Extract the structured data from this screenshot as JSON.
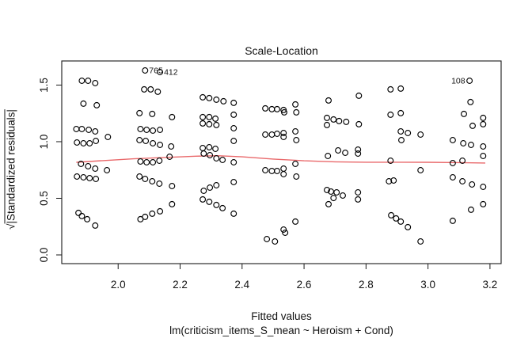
{
  "title": "Scale-Location",
  "x_axis": {
    "label": "Fitted values",
    "ticks": [
      "2.0",
      "2.2",
      "2.4",
      "2.6",
      "2.8",
      "3.0",
      "3.2"
    ],
    "tick_values": [
      2.0,
      2.2,
      2.4,
      2.6,
      2.8,
      3.0,
      3.2
    ]
  },
  "y_axis": {
    "label_radical": "√",
    "label_text": "|Standardized residuals|",
    "ticks": [
      "0.0",
      "0.5",
      "1.0",
      "1.5"
    ],
    "tick_values": [
      0.0,
      0.5,
      1.0,
      1.5
    ]
  },
  "model_caption": "lm(criticism_items_S_mean ~ Heroism + Cond)",
  "colors": {
    "points": "#000000",
    "smooth_line": "#e9696b",
    "axis": "#1a1a1a",
    "text": "#111111"
  },
  "chart_data": {
    "type": "scatter",
    "title": "Scale-Location",
    "xlabel": "Fitted values",
    "ylabel": "sqrt(|Standardized residuals|)",
    "xlim": [
      1.818,
      3.236
    ],
    "ylim": [
      -0.077,
      1.713
    ],
    "grid": false,
    "legend": "none",
    "points": [
      [
        1.883,
        1.538
      ],
      [
        1.903,
        1.538
      ],
      [
        1.926,
        1.517
      ],
      [
        1.888,
        1.336
      ],
      [
        1.931,
        1.322
      ],
      [
        1.865,
        1.112
      ],
      [
        1.883,
        1.112
      ],
      [
        1.905,
        1.105
      ],
      [
        1.926,
        1.091
      ],
      [
        1.967,
        1.042
      ],
      [
        1.867,
        0.993
      ],
      [
        1.888,
        0.986
      ],
      [
        1.908,
        0.986
      ],
      [
        1.928,
        1.007
      ],
      [
        1.88,
        0.804
      ],
      [
        1.903,
        0.783
      ],
      [
        1.926,
        0.762
      ],
      [
        1.964,
        0.748
      ],
      [
        1.867,
        0.692
      ],
      [
        1.888,
        0.685
      ],
      [
        1.908,
        0.678
      ],
      [
        1.928,
        0.671
      ],
      [
        1.872,
        0.371
      ],
      [
        1.883,
        0.343
      ],
      [
        1.9,
        0.315
      ],
      [
        1.926,
        0.259
      ],
      [
        2.087,
        1.629
      ],
      [
        2.135,
        1.615
      ],
      [
        2.084,
        1.462
      ],
      [
        2.105,
        1.462
      ],
      [
        2.128,
        1.441
      ],
      [
        2.069,
        1.252
      ],
      [
        2.11,
        1.245
      ],
      [
        2.174,
        1.217
      ],
      [
        2.072,
        1.112
      ],
      [
        2.092,
        1.105
      ],
      [
        2.112,
        1.098
      ],
      [
        2.135,
        1.105
      ],
      [
        2.069,
        1.014
      ],
      [
        2.089,
        1.007
      ],
      [
        2.112,
        0.986
      ],
      [
        2.135,
        0.972
      ],
      [
        2.171,
        0.958
      ],
      [
        2.072,
        0.825
      ],
      [
        2.092,
        0.818
      ],
      [
        2.112,
        0.818
      ],
      [
        2.133,
        0.832
      ],
      [
        2.166,
        0.867
      ],
      [
        2.069,
        0.692
      ],
      [
        2.087,
        0.671
      ],
      [
        2.11,
        0.65
      ],
      [
        2.133,
        0.629
      ],
      [
        2.174,
        0.608
      ],
      [
        2.174,
        0.448
      ],
      [
        2.135,
        0.385
      ],
      [
        2.11,
        0.364
      ],
      [
        2.087,
        0.336
      ],
      [
        2.072,
        0.315
      ],
      [
        2.273,
        1.392
      ],
      [
        2.294,
        1.385
      ],
      [
        2.317,
        1.371
      ],
      [
        2.34,
        1.357
      ],
      [
        2.273,
        1.217
      ],
      [
        2.294,
        1.217
      ],
      [
        2.314,
        1.203
      ],
      [
        2.273,
        1.161
      ],
      [
        2.294,
        1.154
      ],
      [
        2.317,
        1.147
      ],
      [
        2.273,
        0.944
      ],
      [
        2.294,
        0.951
      ],
      [
        2.314,
        0.937
      ],
      [
        2.276,
        0.895
      ],
      [
        2.296,
        0.881
      ],
      [
        2.317,
        0.853
      ],
      [
        2.337,
        0.839
      ],
      [
        2.317,
        0.615
      ],
      [
        2.296,
        0.594
      ],
      [
        2.276,
        0.566
      ],
      [
        2.273,
        0.49
      ],
      [
        2.294,
        0.469
      ],
      [
        2.317,
        0.441
      ],
      [
        2.337,
        0.413
      ],
      [
        2.373,
        1.343
      ],
      [
        2.373,
        1.238
      ],
      [
        2.373,
        1.119
      ],
      [
        2.373,
        1.007
      ],
      [
        2.373,
        0.818
      ],
      [
        2.373,
        0.643
      ],
      [
        2.373,
        0.364
      ],
      [
        2.475,
        1.294
      ],
      [
        2.496,
        1.287
      ],
      [
        2.513,
        1.287
      ],
      [
        2.534,
        1.28
      ],
      [
        2.536,
        1.259
      ],
      [
        2.572,
        1.329
      ],
      [
        2.575,
        1.259
      ],
      [
        2.475,
        1.063
      ],
      [
        2.496,
        1.063
      ],
      [
        2.513,
        1.07
      ],
      [
        2.534,
        1.077
      ],
      [
        2.534,
        1.042
      ],
      [
        2.572,
        1.091
      ],
      [
        2.575,
        1.014
      ],
      [
        2.475,
        0.748
      ],
      [
        2.496,
        0.741
      ],
      [
        2.513,
        0.741
      ],
      [
        2.534,
        0.762
      ],
      [
        2.534,
        0.713
      ],
      [
        2.572,
        0.804
      ],
      [
        2.575,
        0.692
      ],
      [
        2.572,
        0.294
      ],
      [
        2.534,
        0.224
      ],
      [
        2.539,
        0.196
      ],
      [
        2.506,
        0.119
      ],
      [
        2.48,
        0.14
      ],
      [
        2.679,
        1.364
      ],
      [
        2.777,
        1.406
      ],
      [
        2.674,
        1.21
      ],
      [
        2.695,
        1.196
      ],
      [
        2.713,
        1.182
      ],
      [
        2.736,
        1.175
      ],
      [
        2.777,
        1.154
      ],
      [
        2.674,
        1.147
      ],
      [
        2.677,
        0.874
      ],
      [
        2.71,
        0.923
      ],
      [
        2.733,
        0.902
      ],
      [
        2.774,
        0.93
      ],
      [
        2.774,
        0.895
      ],
      [
        2.674,
        0.573
      ],
      [
        2.687,
        0.559
      ],
      [
        2.705,
        0.552
      ],
      [
        2.725,
        0.524
      ],
      [
        2.695,
        0.503
      ],
      [
        2.774,
        0.552
      ],
      [
        2.774,
        0.49
      ],
      [
        2.679,
        0.448
      ],
      [
        2.879,
        1.462
      ],
      [
        2.912,
        1.469
      ],
      [
        2.879,
        1.238
      ],
      [
        2.912,
        1.252
      ],
      [
        2.912,
        1.091
      ],
      [
        2.935,
        1.077
      ],
      [
        2.914,
        1.014
      ],
      [
        2.976,
        1.063
      ],
      [
        2.879,
        0.832
      ],
      [
        2.874,
        0.65
      ],
      [
        2.889,
        0.657
      ],
      [
        2.976,
        0.748
      ],
      [
        2.881,
        0.35
      ],
      [
        2.897,
        0.322
      ],
      [
        2.912,
        0.294
      ],
      [
        2.935,
        0.245
      ],
      [
        2.976,
        0.119
      ],
      [
        3.134,
        1.538
      ],
      [
        3.137,
        1.35
      ],
      [
        3.116,
        1.245
      ],
      [
        3.178,
        1.21
      ],
      [
        3.178,
        1.154
      ],
      [
        3.144,
        1.14
      ],
      [
        3.08,
        1.014
      ],
      [
        3.114,
        0.986
      ],
      [
        3.139,
        0.972
      ],
      [
        3.178,
        0.958
      ],
      [
        3.178,
        0.874
      ],
      [
        3.08,
        0.811
      ],
      [
        3.111,
        0.832
      ],
      [
        3.08,
        0.685
      ],
      [
        3.111,
        0.65
      ],
      [
        3.142,
        0.622
      ],
      [
        3.178,
        0.601
      ],
      [
        3.178,
        0.448
      ],
      [
        3.139,
        0.399
      ],
      [
        3.08,
        0.301
      ]
    ],
    "labeled_points": [
      {
        "label": "765",
        "x": 2.087,
        "y": 1.629,
        "side": "right"
      },
      {
        "label": "412",
        "x": 2.135,
        "y": 1.615,
        "side": "right"
      },
      {
        "label": "108",
        "x": 3.134,
        "y": 1.538,
        "side": "left"
      }
    ],
    "smooth_line": [
      [
        1.865,
        0.818
      ],
      [
        1.95,
        0.833
      ],
      [
        2.05,
        0.849
      ],
      [
        2.15,
        0.861
      ],
      [
        2.25,
        0.872
      ],
      [
        2.32,
        0.876
      ],
      [
        2.4,
        0.866
      ],
      [
        2.5,
        0.847
      ],
      [
        2.6,
        0.831
      ],
      [
        2.7,
        0.822
      ],
      [
        2.8,
        0.819
      ],
      [
        2.9,
        0.819
      ],
      [
        3.0,
        0.818
      ],
      [
        3.1,
        0.815
      ],
      [
        3.185,
        0.812
      ]
    ]
  }
}
